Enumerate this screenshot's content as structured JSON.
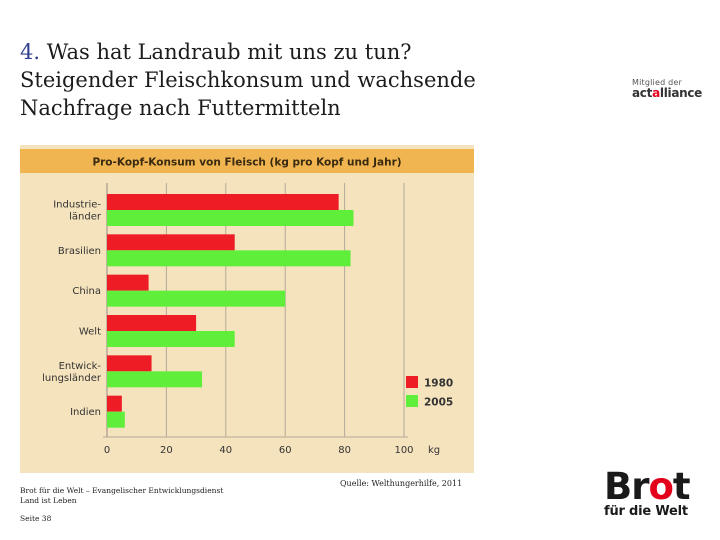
{
  "slide": {
    "title_num": "4.",
    "title_rest": " Was hat Landraub mit uns zu tun?",
    "title_line2": "Steigender Fleischkonsum und wachsende",
    "title_line3": "Nachfrage nach Futtermitteln"
  },
  "act_logo": {
    "small": "Mitglied der",
    "big_pre": "act",
    "big_dot": "a",
    "big_post": "lliance"
  },
  "chart_data": {
    "type": "bar",
    "orientation": "horizontal",
    "title": "Pro-Kopf-Konsum von Fleisch (kg pro Kopf und Jahr)",
    "categories": [
      [
        "Industrie-",
        "länder"
      ],
      [
        "Brasilien"
      ],
      [
        "China"
      ],
      [
        "Welt"
      ],
      [
        "Entwick-",
        "lungsländer"
      ],
      [
        "Indien"
      ]
    ],
    "series": [
      {
        "name": "1980",
        "color": "#ee1c25",
        "values": [
          78,
          43,
          14,
          30,
          15,
          5
        ]
      },
      {
        "name": "2005",
        "color": "#5fef3a",
        "values": [
          83,
          82,
          60,
          43,
          32,
          6
        ]
      }
    ],
    "xlim": [
      0,
      100
    ],
    "xticks": [
      0,
      20,
      40,
      60,
      80,
      100
    ],
    "xunit": "kg",
    "grid": true,
    "legend": "bottom-right",
    "colors": {
      "background": "#f5e3bd",
      "title_band": "#f0b450",
      "grid": "#b3a898"
    }
  },
  "footer": {
    "org": "Brot für die Welt – Evangelischer Entwicklungsdienst",
    "campaign": "Land ist Leben",
    "page": "Seite 38"
  },
  "source": "Quelle: Welthungerhilfe, 2011",
  "brot_logo": {
    "pre": "Br",
    "red": "o",
    "post": "t",
    "sub": "für die Welt"
  }
}
